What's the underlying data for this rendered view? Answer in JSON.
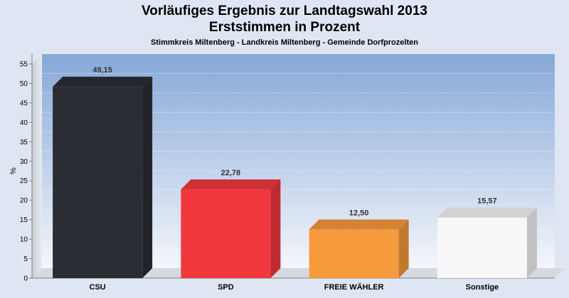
{
  "chart_data": {
    "type": "bar",
    "title": "Vorläufiges Ergebnis zur Landtagswahl 2013",
    "title_line2": "Erststimmen in Prozent",
    "subtitle": "Stimmkreis Miltenberg - Landkreis Miltenberg - Gemeinde Dorfprozelten",
    "ylabel": "%",
    "xlabel": "",
    "ylim": [
      0,
      55
    ],
    "yticks": [
      0,
      5,
      10,
      15,
      20,
      25,
      30,
      35,
      40,
      45,
      50,
      55
    ],
    "grid": true,
    "categories": [
      "CSU",
      "SPD",
      "FREIE WÄHLER",
      "Sonstige"
    ],
    "values": [
      49.15,
      22.78,
      12.5,
      15.57
    ],
    "value_labels": [
      "49,15",
      "22,78",
      "12,50",
      "15,57"
    ],
    "colors": [
      "#2b2d35",
      "#f2383d",
      "#f79a3c",
      "#f7f7fa"
    ]
  }
}
